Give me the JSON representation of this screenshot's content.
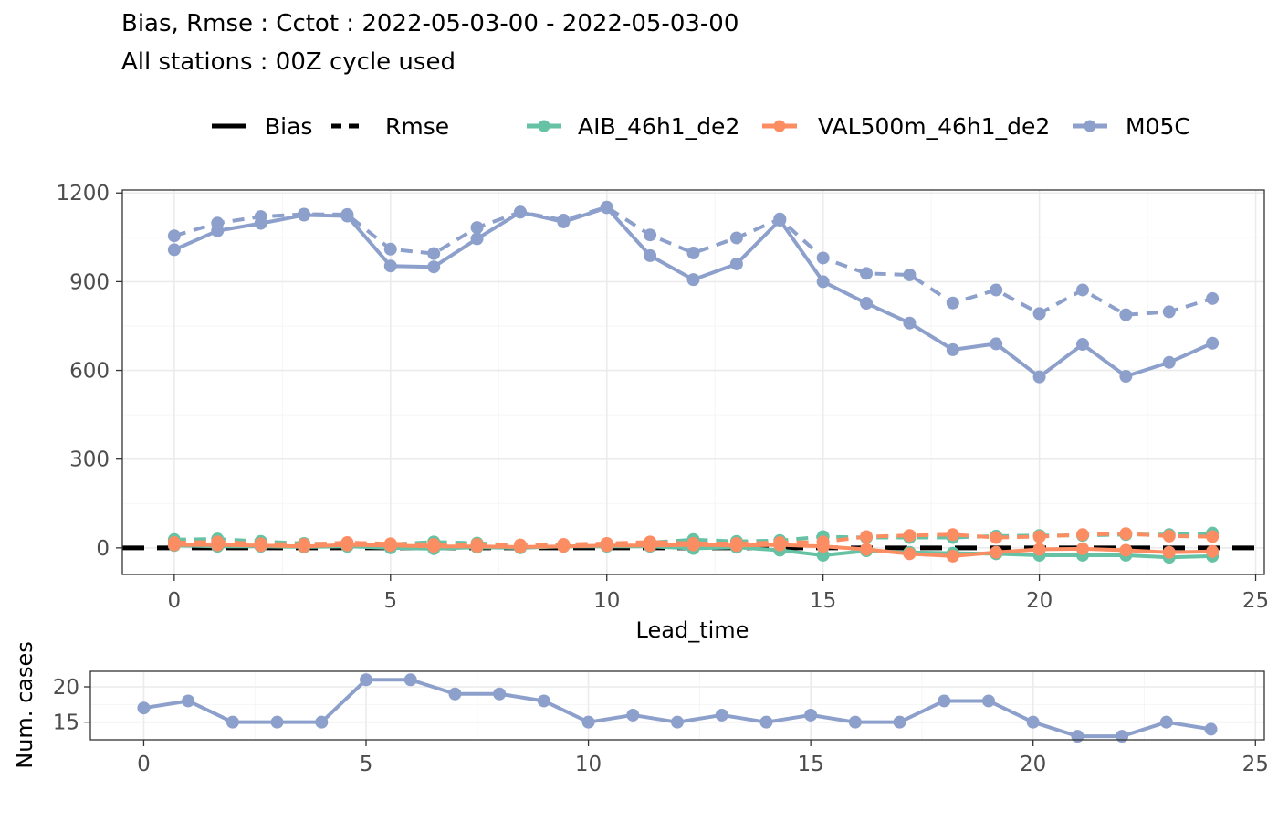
{
  "title": {
    "line1": "Bias, Rmse : Cctot : 2022-05-03-00 - 2022-05-03-00",
    "line2": "All stations : 00Z cycle used"
  },
  "legend": {
    "linetypes": [
      "Bias",
      "Rmse"
    ],
    "models": [
      "AIB_46h1_de2",
      "VAL500m_46h1_de2",
      "M05C"
    ]
  },
  "colors": {
    "AIB_46h1_de2": "#66c2a5",
    "VAL500m_46h1_de2": "#fc8d62",
    "M05C": "#8da0cb",
    "zero_line": "#000000"
  },
  "chart_data": [
    {
      "type": "line",
      "xlabel": "Lead_time",
      "ylabel": "",
      "xlim": [
        -1.2,
        25.2
      ],
      "ylim": [
        -90,
        1210
      ],
      "xticks": [
        0,
        5,
        10,
        15,
        20,
        25
      ],
      "yticks": [
        0,
        300,
        600,
        900,
        1200
      ],
      "x": [
        0,
        1,
        2,
        3,
        4,
        5,
        6,
        7,
        8,
        9,
        10,
        11,
        12,
        13,
        14,
        15,
        16,
        17,
        18,
        19,
        20,
        21,
        22,
        23,
        24
      ],
      "series": [
        {
          "name": "M05C",
          "metric": "Rmse",
          "values": [
            1055,
            1098,
            1120,
            1128,
            1127,
            1010,
            995,
            1083,
            1135,
            1108,
            1152,
            1058,
            997,
            1048,
            1112,
            980,
            928,
            923,
            828,
            872,
            792,
            872,
            788,
            798,
            843
          ]
        },
        {
          "name": "M05C",
          "metric": "Bias",
          "values": [
            1008,
            1072,
            1097,
            1125,
            1122,
            953,
            950,
            1045,
            1135,
            1102,
            1150,
            988,
            907,
            960,
            1108,
            900,
            827,
            760,
            670,
            690,
            578,
            688,
            580,
            627,
            692
          ]
        },
        {
          "name": "AIB_46h1_de2",
          "metric": "Rmse",
          "values": [
            28,
            30,
            22,
            15,
            12,
            12,
            20,
            16,
            8,
            9,
            14,
            18,
            28,
            22,
            25,
            38,
            35,
            35,
            35,
            40,
            42,
            42,
            45,
            45,
            50
          ]
        },
        {
          "name": "AIB_46h1_de2",
          "metric": "Bias",
          "values": [
            8,
            5,
            5,
            3,
            5,
            0,
            -3,
            2,
            0,
            5,
            5,
            5,
            -2,
            2,
            -8,
            -25,
            -10,
            -15,
            -18,
            -20,
            -25,
            -25,
            -25,
            -32,
            -28
          ]
        },
        {
          "name": "VAL500m_46h1_de2",
          "metric": "Rmse",
          "values": [
            18,
            20,
            14,
            12,
            18,
            14,
            12,
            12,
            10,
            12,
            15,
            20,
            15,
            15,
            18,
            20,
            38,
            42,
            45,
            35,
            38,
            45,
            48,
            40,
            38
          ]
        },
        {
          "name": "VAL500m_46h1_de2",
          "metric": "Bias",
          "values": [
            10,
            10,
            8,
            5,
            10,
            8,
            5,
            5,
            3,
            5,
            8,
            8,
            10,
            8,
            10,
            5,
            -5,
            -20,
            -28,
            -15,
            -5,
            -3,
            -8,
            -15,
            -12
          ]
        }
      ]
    },
    {
      "type": "line",
      "xlabel": "",
      "ylabel": "Num. cases",
      "xlim": [
        -1.2,
        25.2
      ],
      "ylim": [
        12.5,
        22.2
      ],
      "xticks": [
        0,
        5,
        10,
        15,
        20,
        25
      ],
      "yticks": [
        15,
        20
      ],
      "x": [
        0,
        1,
        2,
        3,
        4,
        5,
        6,
        7,
        8,
        9,
        10,
        11,
        12,
        13,
        14,
        15,
        16,
        17,
        18,
        19,
        20,
        21,
        22,
        23,
        24
      ],
      "series": [
        {
          "name": "M05C",
          "values": [
            17,
            18,
            15,
            15,
            15,
            21,
            21,
            19,
            19,
            18,
            15,
            16,
            15,
            16,
            15,
            16,
            15,
            15,
            18,
            18,
            15,
            13,
            13,
            15,
            14
          ]
        }
      ]
    }
  ]
}
